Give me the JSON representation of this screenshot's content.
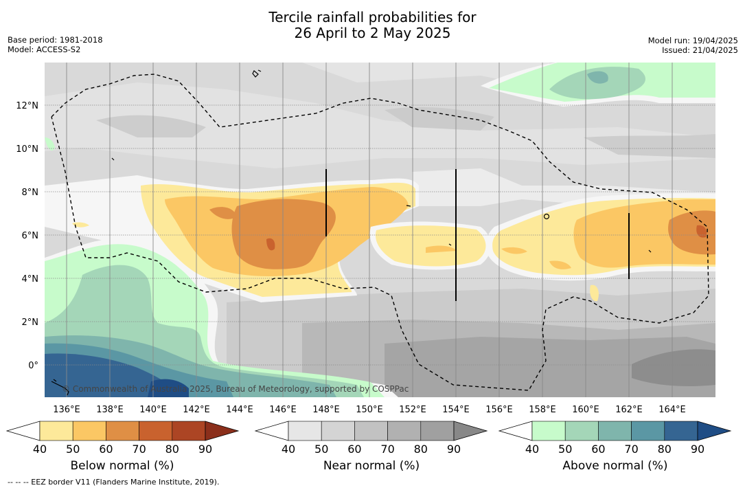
{
  "title_line1": "Tercile rainfall probabilities for",
  "title_line2": "26 April to 2 May 2025",
  "base_period": "Base period: 1981-2018",
  "model": "Model: ACCESS-S2",
  "model_run": "Model run: 19/04/2025",
  "issued": "Issued: 21/04/2025",
  "copyright": "© Commonwealth of Australia 2025, Bureau of Meteorology, supported by COSPPac",
  "footnote": "--  --  -- EEZ border V11 (Flanders Marine Institute, 2019).",
  "lat_labels": [
    "12°N",
    "10°N",
    "8°N",
    "6°N",
    "4°N",
    "2°N",
    "0°"
  ],
  "lon_labels": [
    "136°E",
    "138°E",
    "140°E",
    "142°E",
    "144°E",
    "146°E",
    "148°E",
    "150°E",
    "152°E",
    "154°E",
    "156°E",
    "158°E",
    "160°E",
    "162°E",
    "164°E"
  ],
  "colorbars": [
    {
      "label": "Below normal (%)",
      "ticks": [
        "40",
        "50",
        "60",
        "70",
        "80",
        "90"
      ],
      "colors": [
        "#ffffff",
        "#fde99a",
        "#fbc764",
        "#df8f45",
        "#c9622e",
        "#ac4524",
        "#8b2f1b"
      ]
    },
    {
      "label": "Near normal (%)",
      "ticks": [
        "40",
        "50",
        "60",
        "70",
        "80",
        "90"
      ],
      "colors": [
        "#ffffff",
        "#e6e6e6",
        "#d4d4d4",
        "#c2c2c2",
        "#b1b1b1",
        "#a0a0a0",
        "#888888"
      ]
    },
    {
      "label": "Above normal (%)",
      "ticks": [
        "40",
        "50",
        "60",
        "70",
        "80",
        "90"
      ],
      "colors": [
        "#ffffff",
        "#c7fbcb",
        "#a4d6b8",
        "#7fb5ac",
        "#5b97a4",
        "#356592",
        "#1f4d85"
      ]
    }
  ]
}
